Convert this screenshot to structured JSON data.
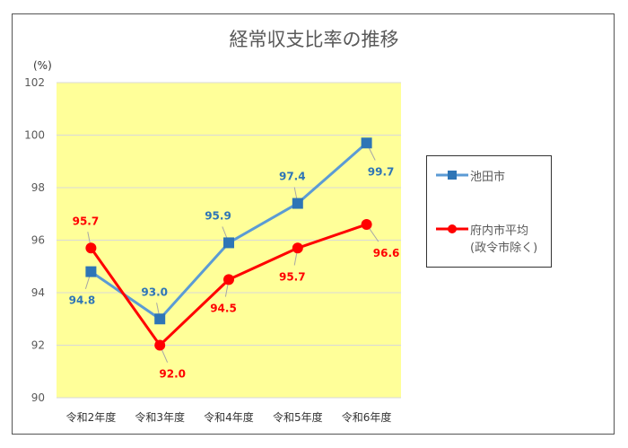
{
  "chart_data": {
    "type": "line",
    "title": "経常収支比率の推移",
    "ylabel": "(%)",
    "categories": [
      "令和2年度",
      "令和3年度",
      "令和4年度",
      "令和5年度",
      "令和6年度"
    ],
    "ylim": [
      90,
      102
    ],
    "yticks": [
      90,
      92,
      94,
      96,
      98,
      100,
      102
    ],
    "grid": true,
    "plot_background": "#FFFF99",
    "legend_position": "right",
    "series": [
      {
        "name": "池田市",
        "values": [
          94.8,
          93.0,
          95.9,
          97.4,
          99.7
        ],
        "color": "#5B9BD5",
        "marker": "square",
        "marker_color": "#2E75B6",
        "label_color": "#2E75B6",
        "labels": [
          "94.8",
          "93.0",
          "95.9",
          "97.4",
          "99.7"
        ]
      },
      {
        "name": "府内市平均",
        "name_line2": "(政令市除く)",
        "values": [
          95.7,
          92.0,
          94.5,
          95.7,
          96.6
        ],
        "color": "#FF0000",
        "marker": "circle",
        "marker_color": "#FF0000",
        "label_color": "#FF0000",
        "labels": [
          "95.7",
          "92.0",
          "94.5",
          "95.7",
          "96.6"
        ]
      }
    ]
  }
}
